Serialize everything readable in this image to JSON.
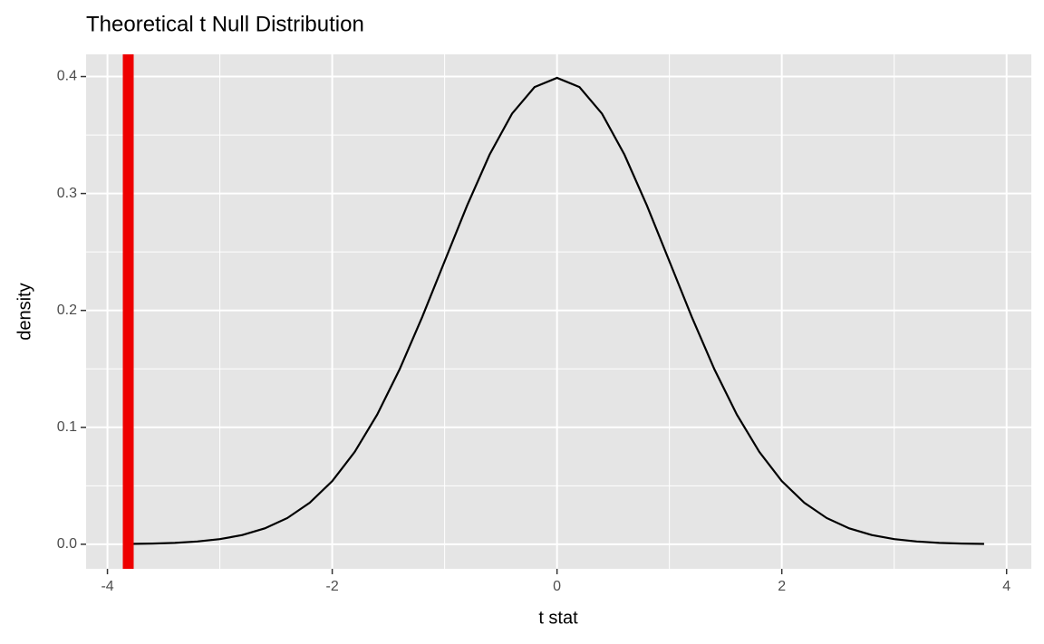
{
  "chart_data": {
    "type": "line",
    "title": "Theoretical t Null Distribution",
    "x_label": "t stat",
    "y_label": "density",
    "x": [
      -3.8,
      -3.6,
      -3.4,
      -3.2,
      -3.0,
      -2.8,
      -2.6,
      -2.4,
      -2.2,
      -2.0,
      -1.8,
      -1.6,
      -1.4,
      -1.2,
      -1.0,
      -0.8,
      -0.6,
      -0.4,
      -0.2,
      0,
      0.2,
      0.4,
      0.6,
      0.8,
      1.0,
      1.2,
      1.4,
      1.6,
      1.8,
      2.0,
      2.2,
      2.4,
      2.6,
      2.8,
      3.0,
      3.2,
      3.4,
      3.6,
      3.8
    ],
    "series": [
      {
        "color": "#000000",
        "values": [
          0.0003,
          0.0006,
          0.0012,
          0.0024,
          0.0044,
          0.0079,
          0.0136,
          0.0224,
          0.0355,
          0.054,
          0.079,
          0.1109,
          0.1497,
          0.1942,
          0.242,
          0.2897,
          0.3332,
          0.3683,
          0.391,
          0.3989,
          0.391,
          0.3683,
          0.3332,
          0.2897,
          0.242,
          0.1942,
          0.1497,
          0.1109,
          0.079,
          0.054,
          0.0355,
          0.0224,
          0.0136,
          0.0079,
          0.0044,
          0.0024,
          0.0012,
          0.0006,
          0.0003
        ]
      }
    ],
    "vline": {
      "x": -3.815,
      "color": "#ee0000"
    },
    "xlim": [
      -4.19,
      4.22
    ],
    "ylim": [
      -0.021,
      0.419
    ],
    "xticks": [
      -4,
      -2,
      0,
      2,
      4
    ],
    "yticks": [
      {
        "value": 0,
        "label": "0.0"
      },
      0.1,
      0.2,
      0.3,
      0.4
    ],
    "x_minor_ticks": [
      -3,
      -1,
      1,
      3
    ],
    "y_minor_ticks": [
      0.05,
      0.15,
      0.25,
      0.35
    ],
    "grid": true
  }
}
